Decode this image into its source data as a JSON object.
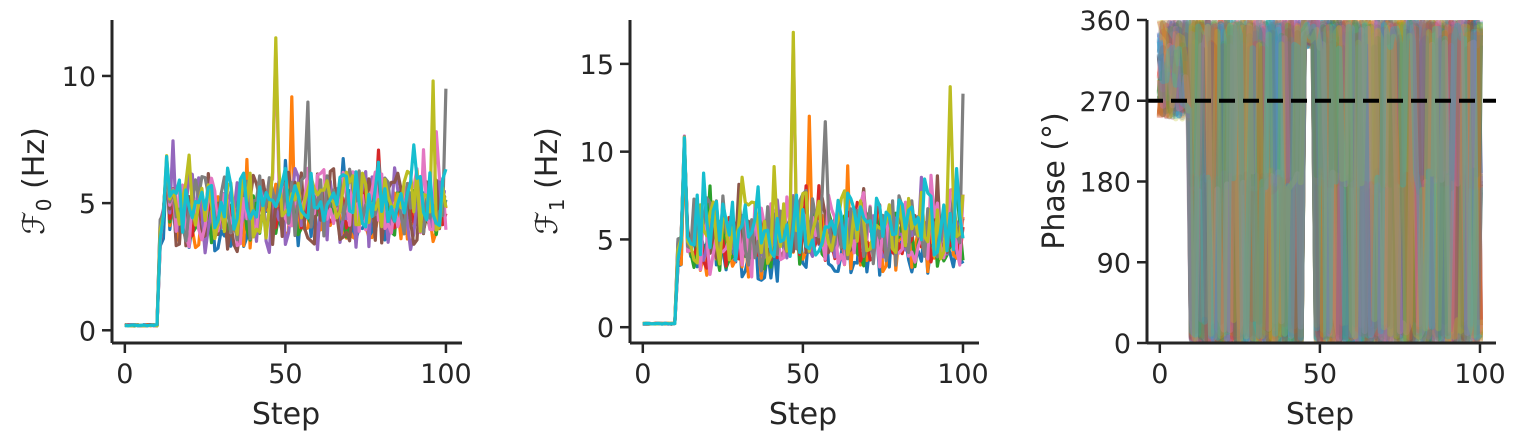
{
  "figure": {
    "panels": [
      {
        "id": "f0",
        "chart_data": {
          "type": "line",
          "xlabel": "Step",
          "ylabel_main": "ℱ",
          "ylabel_sub": "0",
          "ylabel_unit": " (Hz)",
          "xlim": [
            -4,
            105
          ],
          "ylim": [
            -0.5,
            12.2
          ],
          "xticks": [
            0,
            50,
            100
          ],
          "yticks": [
            0,
            5,
            10
          ],
          "grid": false,
          "legend": "none",
          "n_series": 10,
          "series_summary": {
            "baseline_steps": [
              0,
              10
            ],
            "baseline_value": 0.2,
            "jump_peak_step": 13,
            "jump_peak_value": 6.9,
            "settled_min": 3.3,
            "settled_max": 7.5,
            "notable_peak": {
              "step": 47,
              "value": 11.5
            },
            "late_peaks": [
              {
                "step": 96,
                "value": 9.8
              },
              {
                "step": 100,
                "value": 9.5
              }
            ]
          }
        }
      },
      {
        "id": "f1",
        "chart_data": {
          "type": "line",
          "xlabel": "Step",
          "ylabel_main": "ℱ",
          "ylabel_sub": "1",
          "ylabel_unit": " (Hz)",
          "xlim": [
            -4,
            105
          ],
          "ylim": [
            -0.9,
            17.5
          ],
          "xticks": [
            0,
            50,
            100
          ],
          "yticks": [
            0,
            5,
            10,
            15
          ],
          "grid": false,
          "legend": "none",
          "n_series": 10,
          "series_summary": {
            "baseline_steps": [
              0,
              10
            ],
            "baseline_value": 0.2,
            "jump_peak_step": 13,
            "jump_peak_value": 10.9,
            "settled_min": 3.2,
            "settled_max": 9.5,
            "notable_peak": {
              "step": 47,
              "value": 16.8
            },
            "late_peaks": [
              {
                "step": 96,
                "value": 13.7
              },
              {
                "step": 100,
                "value": 13.3
              }
            ]
          }
        }
      },
      {
        "id": "phase",
        "chart_data": {
          "type": "line",
          "xlabel": "Step",
          "ylabel": "Phase (°)",
          "xlim": [
            -4,
            105
          ],
          "ylim": [
            0,
            360
          ],
          "xticks": [
            0,
            50,
            100
          ],
          "yticks": [
            0,
            90,
            180,
            270,
            360
          ],
          "grid": false,
          "legend": "none",
          "reference_line": {
            "y": 270,
            "style": "dashed",
            "color": "#000000"
          },
          "n_series": 60,
          "series_summary": {
            "pattern": "phase wraps between 0 and 360 degrees",
            "dense_bands": [
              [
                10,
                45
              ],
              [
                48,
                100
              ]
            ],
            "gap_steps": [
              45,
              48
            ],
            "cluster_values": [
              180,
              15,
              340
            ]
          }
        }
      }
    ],
    "series_colors": [
      "#1f77b4",
      "#ff7f0e",
      "#2ca02c",
      "#d62728",
      "#9467bd",
      "#8c564b",
      "#e377c2",
      "#7f7f7f",
      "#bcbd22",
      "#17becf"
    ]
  }
}
